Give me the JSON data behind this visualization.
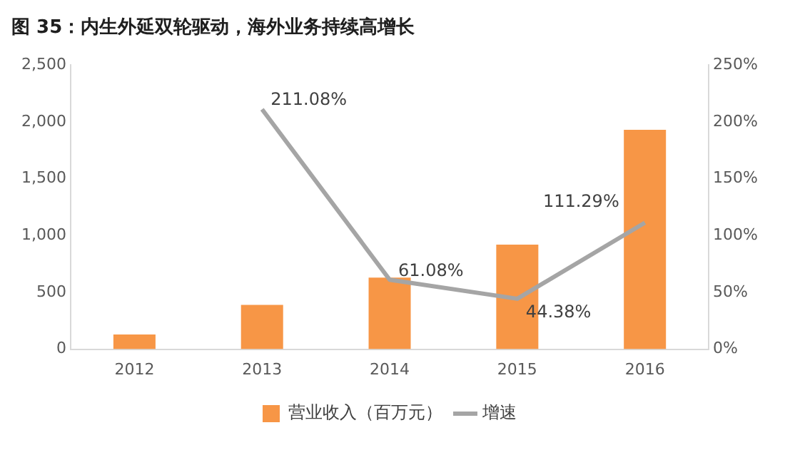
{
  "chart_data": {
    "type": "bar",
    "title": "图 35：内生外延双轮驱动，海外业务持续高增长",
    "categories": [
      "2012",
      "2013",
      "2014",
      "2015",
      "2016"
    ],
    "series": [
      {
        "name": "营业收入（百万元）",
        "color": "#f79646",
        "values": [
          130,
          390,
          630,
          920,
          1930
        ]
      },
      {
        "name": "增速",
        "type": "line",
        "axis": "y2",
        "color": "#a5a5a5",
        "values": [
          null,
          211.08,
          61.08,
          44.38,
          111.29
        ],
        "value_labels": [
          null,
          "211.08%",
          "61.08%",
          "44.38%",
          "111.29%"
        ]
      }
    ],
    "ylim": [
      0,
      2500
    ],
    "yticks": [
      {
        "value": 0,
        "label": "0"
      },
      {
        "value": 500,
        "label": "500"
      },
      {
        "value": 1000,
        "label": "1,000"
      },
      {
        "value": 1500,
        "label": "1,500"
      },
      {
        "value": 2000,
        "label": "2,000"
      },
      {
        "value": 2500,
        "label": "2,500"
      }
    ],
    "y2lim": [
      0,
      250
    ],
    "y2ticks": [
      {
        "value": 0,
        "label": "0%"
      },
      {
        "value": 50,
        "label": "50%"
      },
      {
        "value": 100,
        "label": "100%"
      },
      {
        "value": 150,
        "label": "150%"
      },
      {
        "value": 200,
        "label": "200%"
      },
      {
        "value": 250,
        "label": "250%"
      }
    ],
    "grid": false,
    "legend": "bottom",
    "marker": "none"
  }
}
